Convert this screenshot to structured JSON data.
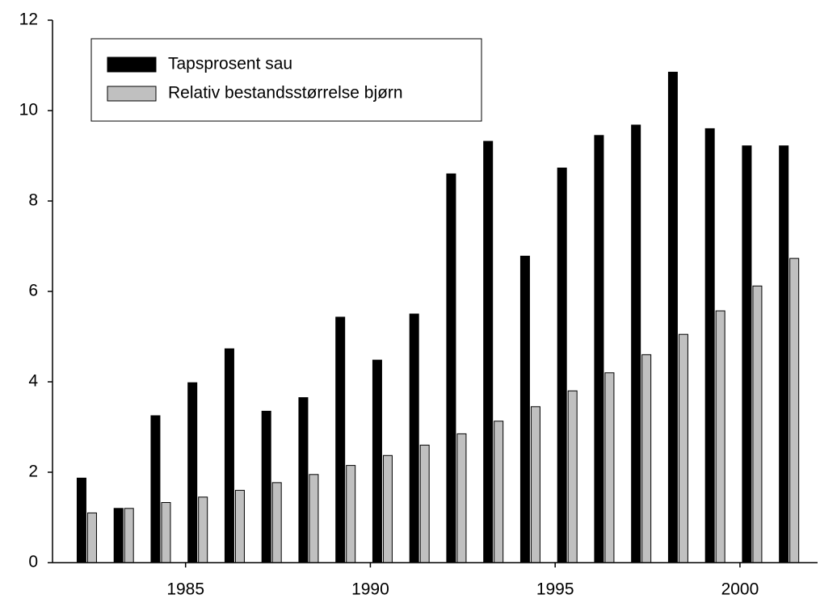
{
  "chart_data": {
    "type": "bar",
    "x": [
      1982,
      1983,
      1984,
      1985,
      1986,
      1987,
      1988,
      1989,
      1990,
      1991,
      1992,
      1993,
      1994,
      1995,
      1996,
      1997,
      1998,
      1999,
      2000,
      2001
    ],
    "series": [
      {
        "name": "Tapsprosent sau",
        "color": "#000000",
        "values": [
          1.87,
          1.2,
          3.25,
          3.98,
          4.73,
          3.35,
          3.65,
          5.43,
          4.48,
          5.5,
          8.6,
          9.32,
          6.78,
          8.73,
          9.45,
          9.68,
          10.85,
          9.6,
          9.22,
          9.22
        ]
      },
      {
        "name": "Relativ bestandsstørrelse bjørn",
        "color": "#c0c0c0",
        "values": [
          1.1,
          1.2,
          1.33,
          1.45,
          1.6,
          1.77,
          1.95,
          2.15,
          2.37,
          2.6,
          2.85,
          3.13,
          3.45,
          3.8,
          4.2,
          4.6,
          5.05,
          5.57,
          6.12,
          6.73
        ]
      }
    ],
    "xlim": [
      1981.4,
      2002.1
    ],
    "xticks": [
      1985,
      1990,
      1995,
      2000
    ],
    "ylim": [
      0,
      12
    ],
    "yticks": [
      0,
      2,
      4,
      6,
      8,
      10,
      12
    ],
    "legend": "upper left"
  }
}
